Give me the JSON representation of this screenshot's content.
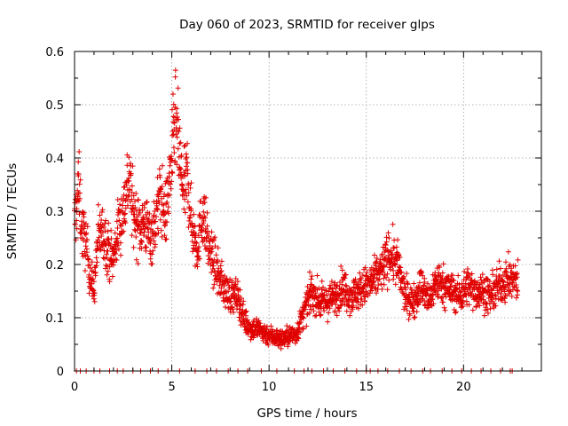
{
  "chart_data": {
    "type": "scatter",
    "title": "Day 060 of 2023, SRMTID for receiver glps",
    "xlabel": "GPS time / hours",
    "ylabel": "SRMTID / TECUs",
    "xlim": [
      0,
      24
    ],
    "ylim": [
      0,
      0.6
    ],
    "x_ticks": [
      "0",
      "5",
      "10",
      "15",
      "20"
    ],
    "y_ticks": [
      "0",
      "0.1",
      "0.2",
      "0.3",
      "0.4",
      "0.5",
      "0.6"
    ],
    "grid": true,
    "marker": "+",
    "color": "#e00000",
    "series": [
      {
        "name": "SRMTID",
        "trend": [
          [
            0.0,
            0.27
          ],
          [
            0.2,
            0.35
          ],
          [
            0.4,
            0.26
          ],
          [
            0.6,
            0.24
          ],
          [
            0.8,
            0.18
          ],
          [
            1.0,
            0.15
          ],
          [
            1.2,
            0.25
          ],
          [
            1.5,
            0.26
          ],
          [
            1.8,
            0.22
          ],
          [
            2.0,
            0.21
          ],
          [
            2.2,
            0.26
          ],
          [
            2.5,
            0.3
          ],
          [
            2.8,
            0.37
          ],
          [
            3.0,
            0.3
          ],
          [
            3.3,
            0.27
          ],
          [
            3.6,
            0.28
          ],
          [
            3.9,
            0.25
          ],
          [
            4.1,
            0.27
          ],
          [
            4.4,
            0.33
          ],
          [
            4.7,
            0.29
          ],
          [
            5.0,
            0.4
          ],
          [
            5.2,
            0.47
          ],
          [
            5.4,
            0.4
          ],
          [
            5.6,
            0.33
          ],
          [
            5.8,
            0.37
          ],
          [
            6.0,
            0.28
          ],
          [
            6.3,
            0.23
          ],
          [
            6.6,
            0.3
          ],
          [
            6.9,
            0.23
          ],
          [
            7.2,
            0.2
          ],
          [
            7.5,
            0.17
          ],
          [
            7.8,
            0.15
          ],
          [
            8.1,
            0.14
          ],
          [
            8.4,
            0.14
          ],
          [
            8.7,
            0.1
          ],
          [
            9.0,
            0.08
          ],
          [
            9.4,
            0.08
          ],
          [
            9.8,
            0.07
          ],
          [
            10.2,
            0.065
          ],
          [
            10.6,
            0.06
          ],
          [
            11.0,
            0.065
          ],
          [
            11.4,
            0.07
          ],
          [
            11.8,
            0.11
          ],
          [
            12.2,
            0.15
          ],
          [
            12.6,
            0.13
          ],
          [
            13.0,
            0.13
          ],
          [
            13.4,
            0.14
          ],
          [
            13.8,
            0.16
          ],
          [
            14.2,
            0.14
          ],
          [
            14.6,
            0.15
          ],
          [
            15.0,
            0.16
          ],
          [
            15.4,
            0.17
          ],
          [
            15.8,
            0.19
          ],
          [
            16.2,
            0.22
          ],
          [
            16.6,
            0.2
          ],
          [
            17.0,
            0.14
          ],
          [
            17.4,
            0.13
          ],
          [
            17.8,
            0.16
          ],
          [
            18.2,
            0.13
          ],
          [
            18.6,
            0.17
          ],
          [
            19.0,
            0.16
          ],
          [
            19.4,
            0.15
          ],
          [
            19.8,
            0.14
          ],
          [
            20.2,
            0.16
          ],
          [
            20.6,
            0.15
          ],
          [
            21.0,
            0.15
          ],
          [
            21.4,
            0.14
          ],
          [
            21.8,
            0.16
          ],
          [
            22.2,
            0.17
          ],
          [
            22.6,
            0.17
          ],
          [
            22.8,
            0.17
          ]
        ],
        "zero_points_x": [
          0.1,
          0.3,
          0.6,
          1.0,
          1.3,
          1.8,
          2.2,
          2.5,
          3.0,
          3.4,
          3.9,
          4.3,
          4.8,
          5.4,
          6.2,
          6.8,
          7.3,
          7.9,
          8.4,
          8.9,
          9.6,
          10.4,
          11.3,
          11.8,
          12.2,
          12.8,
          13.3,
          13.9,
          14.5,
          15.0,
          15.2,
          15.6,
          16.1,
          16.7,
          17.3,
          17.9,
          18.3,
          18.9,
          19.4,
          19.9,
          20.4,
          20.9,
          21.4,
          21.9,
          22.4,
          22.5
        ]
      }
    ]
  }
}
